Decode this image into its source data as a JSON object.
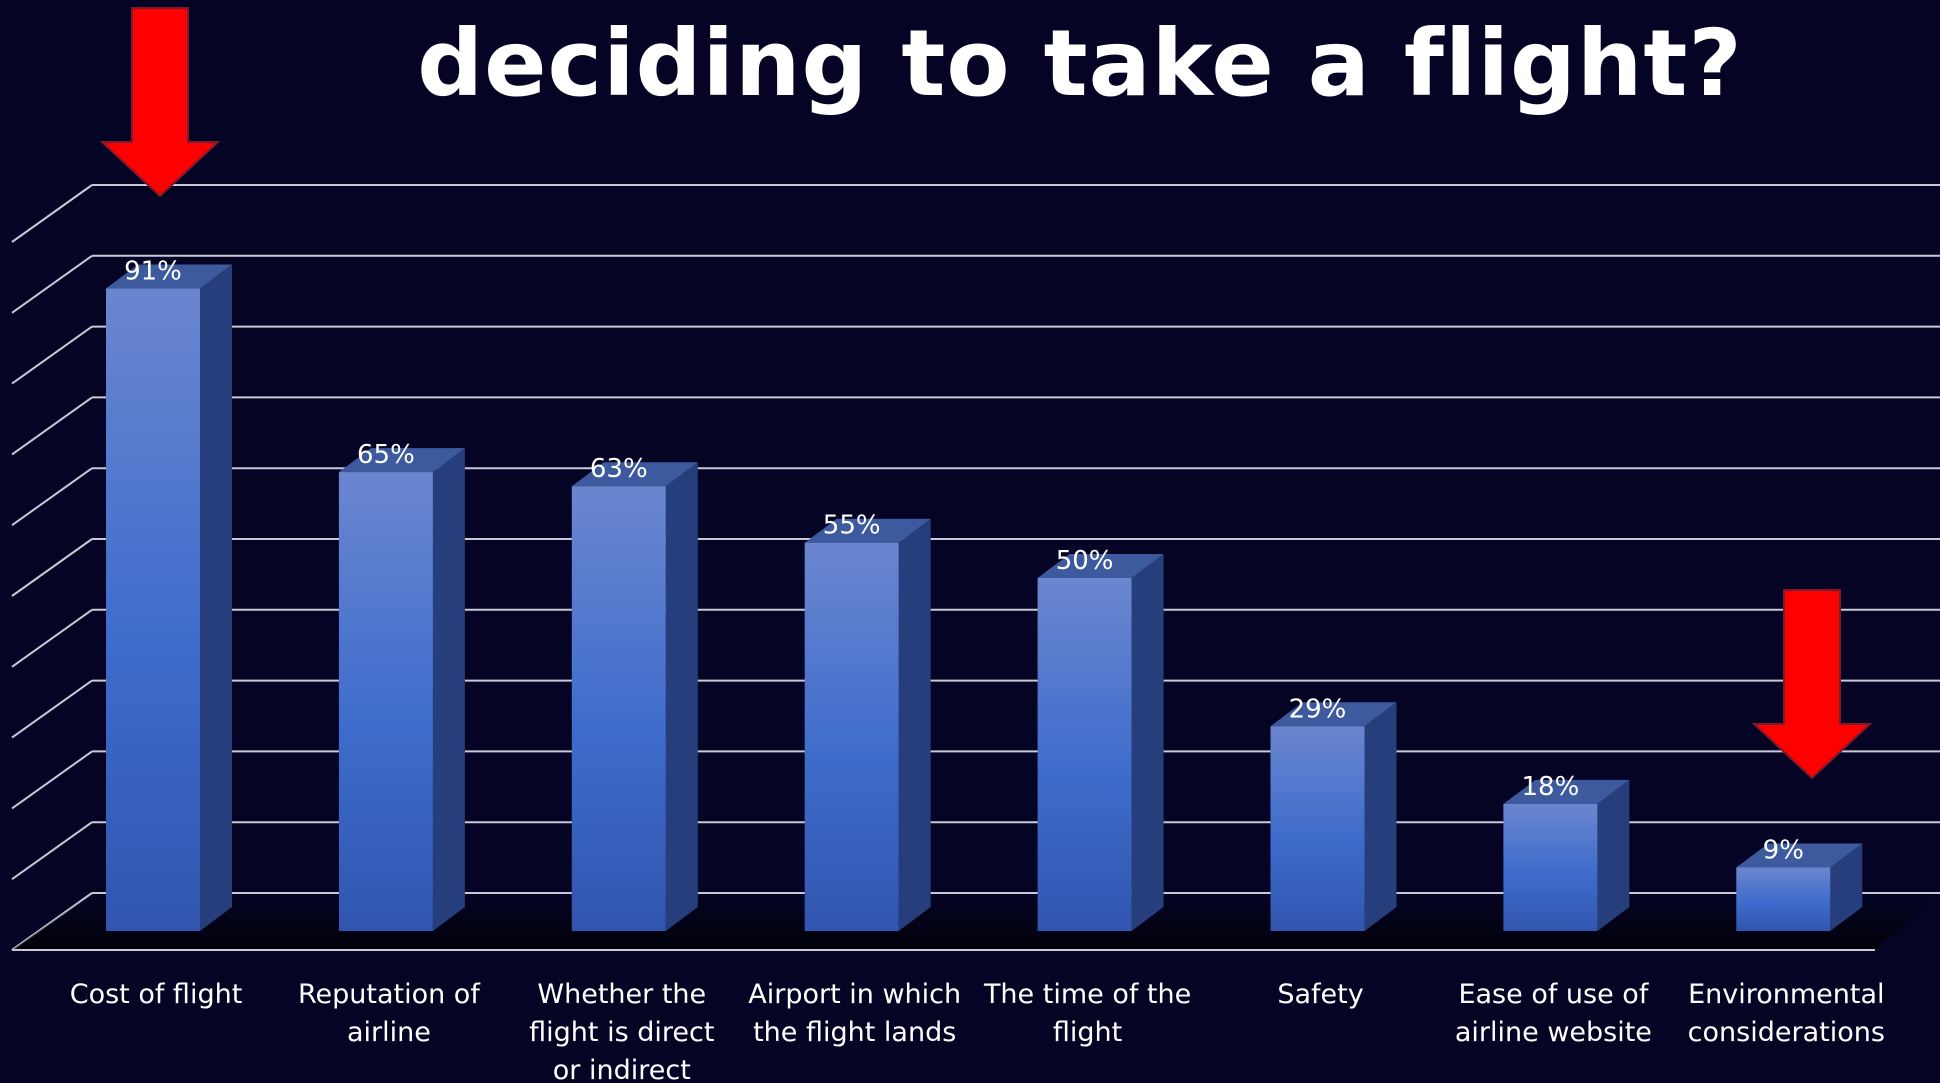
{
  "chart_data": {
    "type": "bar",
    "title": "deciding to take a flight?",
    "categories": [
      [
        "Cost of flight"
      ],
      [
        "Reputation of",
        "airline"
      ],
      [
        "Whether the",
        "flight is direct",
        "or indirect"
      ],
      [
        "Airport in which",
        "the flight lands"
      ],
      [
        "The time of the",
        "flight"
      ],
      [
        "Safety"
      ],
      [
        "Ease of use of",
        "airline website"
      ],
      [
        "Environmental",
        "considerations"
      ]
    ],
    "values": [
      91,
      65,
      63,
      55,
      50,
      29,
      18,
      9
    ],
    "value_labels": [
      "91%",
      "65%",
      "63%",
      "55%",
      "50%",
      "29%",
      "18%",
      "9%"
    ],
    "ylim": [
      0,
      100
    ],
    "grid": true,
    "style": "3d-column",
    "colors": {
      "background": "#050425",
      "bar_top": "#6b86cf",
      "bar_mid": "#3e6ccc",
      "bar_bottom": "#3155ae",
      "bar_side": "#263e7c",
      "gridline": "#c9c9d6",
      "highlight_arrow": "#ff0000"
    },
    "annotations": [
      {
        "type": "arrow-down",
        "target_category": 0
      },
      {
        "type": "arrow-down",
        "target_category": 7
      }
    ]
  }
}
